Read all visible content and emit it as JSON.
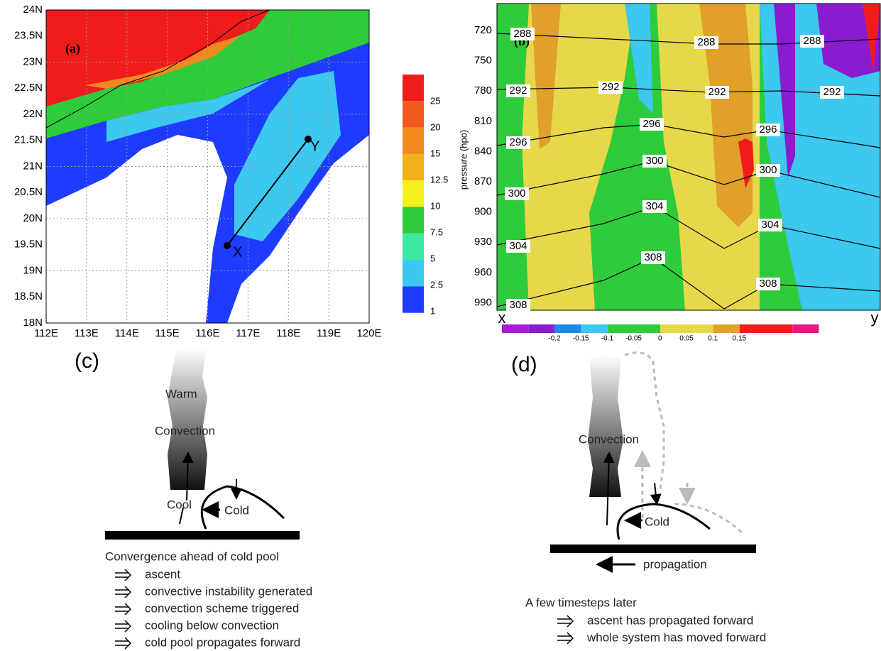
{
  "panel_a": {
    "label": "(a)",
    "x_ticks": [
      "112E",
      "113E",
      "114E",
      "115E",
      "116E",
      "117E",
      "118E",
      "119E",
      "120E"
    ],
    "y_ticks": [
      "24N",
      "23.5N",
      "23N",
      "22.5N",
      "22N",
      "21.5N",
      "21N",
      "20.5N",
      "20N",
      "19.5N",
      "19N",
      "18.5N",
      "18N"
    ],
    "colorbar": [
      "25",
      "20",
      "15",
      "12.5",
      "10",
      "7.5",
      "5",
      "2.5",
      "1"
    ],
    "markers": [
      "X",
      "Y"
    ]
  },
  "panel_b": {
    "label": "(b)",
    "y_axis_title": "pressure  (hpo)",
    "y_ticks": [
      "720",
      "750",
      "780",
      "810",
      "840",
      "870",
      "900",
      "930",
      "960",
      "990"
    ],
    "x_ends": [
      "x",
      "y"
    ],
    "contour_labels": [
      "288",
      "288",
      "288",
      "292",
      "292",
      "292",
      "292",
      "296",
      "296",
      "296",
      "300",
      "300",
      "300",
      "304",
      "304",
      "304",
      "308",
      "308",
      "308"
    ],
    "colorbar": [
      "-0.2",
      "-0.15",
      "-0.1",
      "-0.05",
      "0",
      "0.05",
      "0.1",
      "0.15"
    ]
  },
  "panel_c": {
    "label": "(c)",
    "words": [
      "Warm",
      "Convection",
      "Cool",
      "Cold"
    ],
    "caption": "Convergence ahead of cold pool",
    "steps": [
      "ascent",
      "convective instability generated",
      "convection scheme triggered",
      "cooling below convection",
      "cold pool propagates forward"
    ]
  },
  "panel_d": {
    "label": "(d)",
    "words": [
      "Convection",
      "Cold",
      "propagation"
    ],
    "caption": "A few timesteps later",
    "steps": [
      "ascent has propagated forward",
      "whole system has moved forward"
    ]
  }
}
